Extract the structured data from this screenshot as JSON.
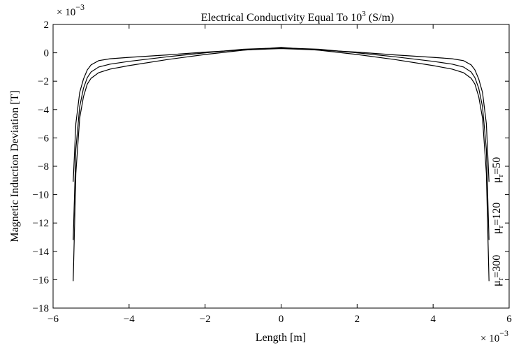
{
  "chart_data": {
    "type": "line",
    "title_prefix": "Electrical Conductivity Equal To 10",
    "title_sup": "3",
    "title_suffix": " (S/m)",
    "xlabel": "Length [m]",
    "ylabel": "Magnetic Induction Deviation [T]",
    "x_multiplier_base": "× 10",
    "x_multiplier_exp": "−3",
    "y_multiplier_base": "× 10",
    "y_multiplier_exp": "−3",
    "xlim": [
      -6,
      6
    ],
    "ylim": [
      -18,
      2
    ],
    "xticks": [
      "−6",
      "−4",
      "−2",
      "0",
      "2",
      "4",
      "6"
    ],
    "yticks": [
      "2",
      "0",
      "−2",
      "−4",
      "−6",
      "−8",
      "−10",
      "−12",
      "−14",
      "−16",
      "−18"
    ],
    "grid": false,
    "series": [
      {
        "name": "μr=50",
        "label_mu": "μ",
        "label_sub": "r",
        "label_val": "=50",
        "x": [
          -5.47,
          -5.4,
          -5.3,
          -5.2,
          -5.1,
          -5.0,
          -4.8,
          -4.5,
          -4.0,
          -3.0,
          -2.0,
          -1.0,
          0.0,
          1.0,
          2.0,
          3.0,
          4.0,
          4.5,
          4.8,
          5.0,
          5.1,
          5.2,
          5.3,
          5.4,
          5.47
        ],
        "y": [
          -9.1,
          -5.0,
          -2.8,
          -1.85,
          -1.2,
          -0.85,
          -0.55,
          -0.42,
          -0.32,
          -0.15,
          0.05,
          0.2,
          0.3,
          0.2,
          0.05,
          -0.15,
          -0.32,
          -0.42,
          -0.55,
          -0.85,
          -1.2,
          -1.85,
          -2.8,
          -5.0,
          -9.1
        ]
      },
      {
        "name": "μr=120",
        "label_mu": "μ",
        "label_sub": "r",
        "label_val": "=120",
        "x": [
          -5.47,
          -5.4,
          -5.3,
          -5.2,
          -5.1,
          -5.0,
          -4.8,
          -4.5,
          -4.0,
          -3.0,
          -2.0,
          -1.0,
          0.0,
          1.0,
          2.0,
          3.0,
          4.0,
          4.5,
          4.8,
          5.0,
          5.1,
          5.2,
          5.3,
          5.4,
          5.47
        ],
        "y": [
          -13.2,
          -6.8,
          -3.8,
          -2.5,
          -1.75,
          -1.35,
          -1.0,
          -0.8,
          -0.6,
          -0.28,
          0.0,
          0.25,
          0.35,
          0.25,
          0.0,
          -0.28,
          -0.6,
          -0.8,
          -1.0,
          -1.35,
          -1.75,
          -2.5,
          -3.8,
          -6.8,
          -13.2
        ]
      },
      {
        "name": "μr=300",
        "label_mu": "μ",
        "label_sub": "r",
        "label_val": "=300",
        "x": [
          -5.47,
          -5.4,
          -5.3,
          -5.2,
          -5.1,
          -5.0,
          -4.8,
          -4.5,
          -4.0,
          -3.0,
          -2.0,
          -1.0,
          0.0,
          1.0,
          2.0,
          3.0,
          4.0,
          4.5,
          4.8,
          5.0,
          5.1,
          5.2,
          5.3,
          5.4,
          5.47
        ],
        "y": [
          -16.1,
          -8.5,
          -4.6,
          -3.1,
          -2.2,
          -1.8,
          -1.4,
          -1.15,
          -0.9,
          -0.48,
          -0.12,
          0.18,
          0.38,
          0.18,
          -0.12,
          -0.48,
          -0.9,
          -1.15,
          -1.4,
          -1.8,
          -2.2,
          -3.1,
          -4.6,
          -8.5,
          -16.1
        ]
      }
    ]
  }
}
